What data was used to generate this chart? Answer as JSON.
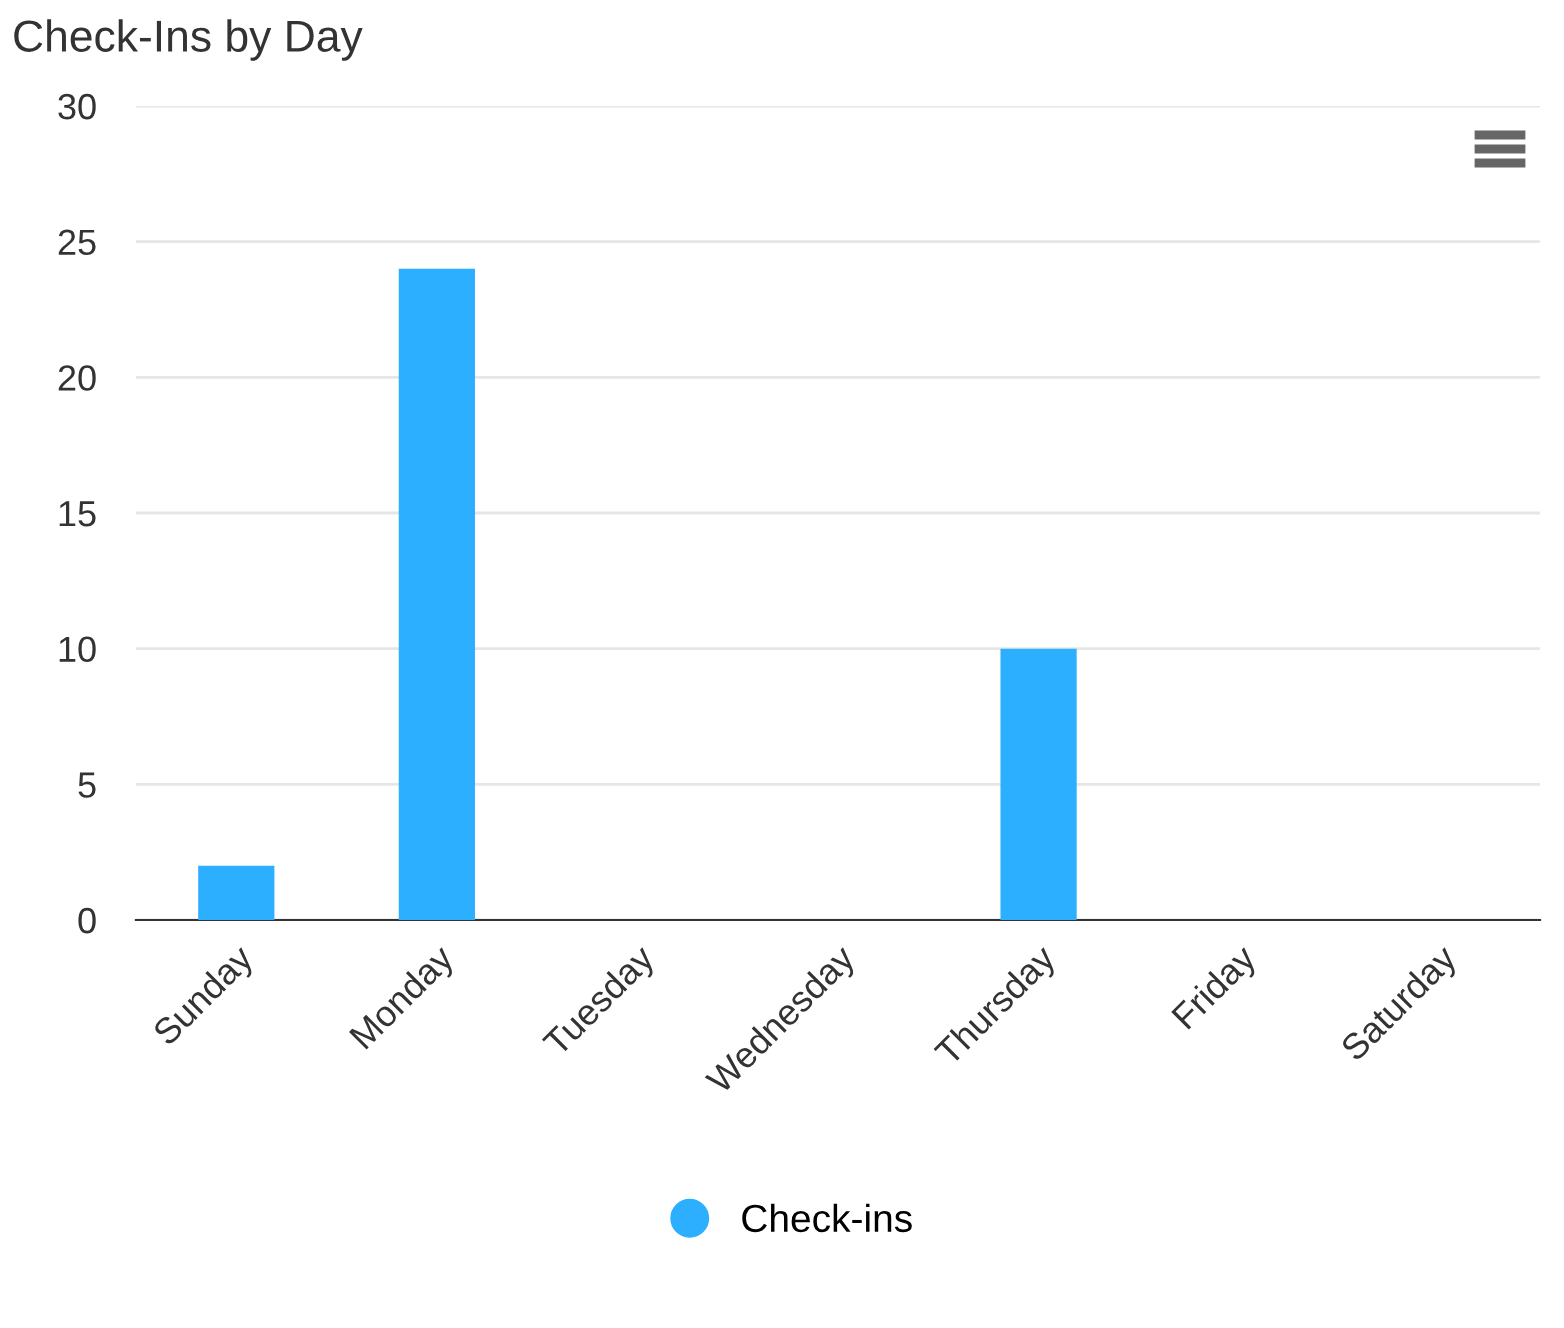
{
  "chart_data": {
    "type": "bar",
    "title": "Check-Ins by Day",
    "categories": [
      "Sunday",
      "Monday",
      "Tuesday",
      "Wednesday",
      "Thursday",
      "Friday",
      "Saturday"
    ],
    "series": [
      {
        "name": "Check-ins",
        "color": "#2caffe",
        "values": [
          2,
          24,
          0,
          0,
          10,
          0,
          0
        ]
      }
    ],
    "ylim": [
      0,
      30
    ],
    "yticks": [
      0,
      5,
      10,
      15,
      20,
      25,
      30
    ],
    "grid": "y",
    "legend": "bottom"
  }
}
